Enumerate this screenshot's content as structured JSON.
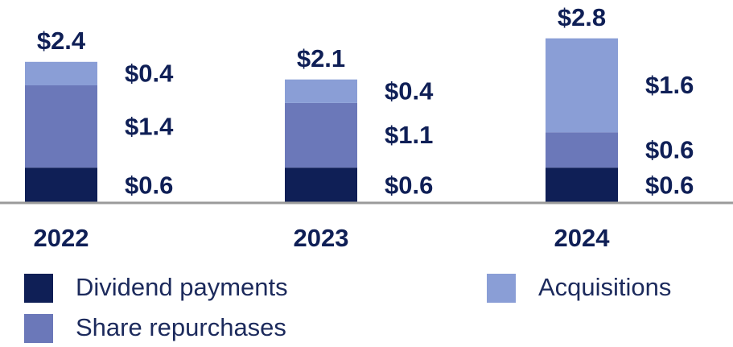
{
  "chart_data": {
    "type": "stacked-bar",
    "categories": [
      "2022",
      "2023",
      "2024"
    ],
    "ylim": [
      0,
      3
    ],
    "series": [
      {
        "name": "Dividend payments",
        "color": "#0f1f56",
        "values": [
          0.6,
          0.6,
          0.6
        ],
        "value_labels": [
          "$0.6",
          "$0.6",
          "$0.6"
        ]
      },
      {
        "name": "Share repurchases",
        "color": "#6b78b9",
        "values": [
          1.4,
          1.1,
          0.6
        ],
        "value_labels": [
          "$1.4",
          "$1.1",
          "$0.6"
        ]
      },
      {
        "name": "Acquisitions",
        "color": "#8a9ed6",
        "values": [
          0.4,
          0.4,
          1.6
        ],
        "value_labels": [
          "$0.4",
          "$0.4",
          "$1.6"
        ]
      }
    ],
    "totals": {
      "values": [
        2.4,
        2.1,
        2.8
      ],
      "value_labels": [
        "$2.4",
        "$2.1",
        "$2.8"
      ]
    }
  }
}
